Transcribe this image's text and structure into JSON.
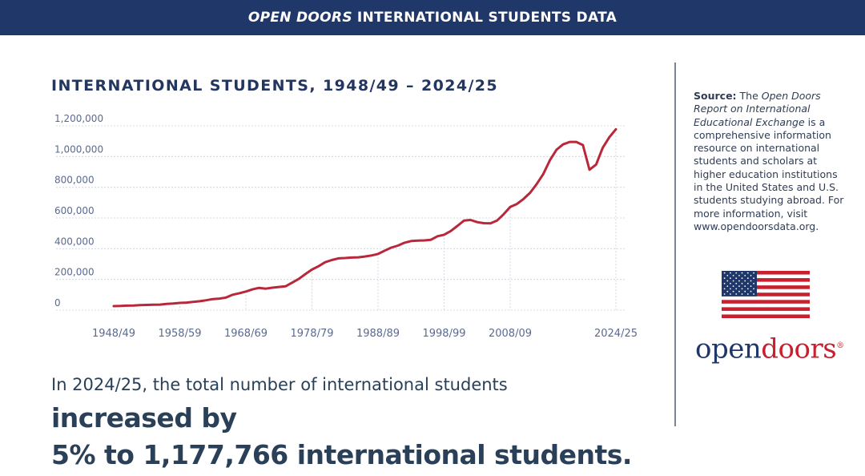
{
  "banner": {
    "italic": "OPEN DOORS",
    "rest": "INTERNATIONAL STUDENTS DATA"
  },
  "chart_title": "INTERNATIONAL STUDENTS, 1948/49 – 2024/25",
  "headline": {
    "lead": "In 2024/25, the total number of international students",
    "highlight_1": "increased by",
    "highlight_2": "5% to 1,177,766 international students."
  },
  "source": {
    "label": "Source:",
    "text_1": "The",
    "italic": "Open Doors Report on International Educational Exchange",
    "text_2": "is a comprehensive information resource on international students and scholars at higher education institutions in the United States and U.S. students studying abroad. For more information, visit www.opendoorsdata.org."
  },
  "logo": {
    "part_1": "open",
    "part_2": "doors",
    "mark": "®"
  },
  "colors": {
    "line": "#b8283a",
    "banner": "#1f3769",
    "accent": "#c8202f"
  },
  "chart_data": {
    "type": "line",
    "title": "INTERNATIONAL STUDENTS, 1948/49 – 2024/25",
    "xlabel": "",
    "ylabel": "",
    "ylim": [
      0,
      1200000
    ],
    "y_ticks": [
      0,
      200000,
      400000,
      600000,
      800000,
      1000000,
      1200000
    ],
    "y_tick_labels": [
      "0",
      "200,000",
      "400,000",
      "600,000",
      "800,000",
      "1,000,000",
      "1,200,000"
    ],
    "x_tick_labels": [
      "1948/49",
      "1958/59",
      "1968/69",
      "1978/79",
      "1988/89",
      "1998/99",
      "2008/09",
      "2024/25"
    ],
    "x_tick_years": [
      1948,
      1958,
      1968,
      1978,
      1988,
      1998,
      2008,
      2024
    ],
    "grid": "horizontal",
    "series": [
      {
        "x": [
          1948,
          1949,
          1950,
          1951,
          1952,
          1953,
          1954,
          1955,
          1956,
          1957,
          1958,
          1959,
          1960,
          1961,
          1962,
          1963,
          1964,
          1965,
          1966,
          1967,
          1968,
          1969,
          1970,
          1971,
          1972,
          1973,
          1974,
          1975,
          1976,
          1977,
          1978,
          1979,
          1980,
          1981,
          1982,
          1983,
          1984,
          1985,
          1986,
          1987,
          1988,
          1989,
          1990,
          1991,
          1992,
          1993,
          1994,
          1995,
          1996,
          1997,
          1998,
          1999,
          2000,
          2001,
          2002,
          2003,
          2004,
          2005,
          2006,
          2007,
          2008,
          2009,
          2010,
          2011,
          2012,
          2013,
          2014,
          2015,
          2016,
          2017,
          2018,
          2019,
          2020,
          2021,
          2022,
          2023,
          2024
        ],
        "values": [
          26000,
          27000,
          29000,
          30000,
          33000,
          34000,
          35000,
          36000,
          40000,
          43000,
          47000,
          49000,
          53000,
          58000,
          64000,
          72000,
          75000,
          82000,
          100000,
          110000,
          121000,
          135000,
          145000,
          140000,
          146000,
          151000,
          155000,
          179000,
          203000,
          235000,
          264000,
          286000,
          312000,
          326000,
          337000,
          339000,
          342000,
          344000,
          349000,
          356000,
          366000,
          387000,
          407000,
          420000,
          439000,
          450000,
          453000,
          454000,
          458000,
          481000,
          491000,
          515000,
          548000,
          583000,
          587000,
          573000,
          566000,
          565000,
          583000,
          624000,
          672000,
          691000,
          723000,
          764000,
          820000,
          886000,
          975000,
          1044000,
          1079000,
          1095000,
          1095000,
          1075000,
          914000,
          948000,
          1057000,
          1126000,
          1177766
        ]
      }
    ]
  }
}
